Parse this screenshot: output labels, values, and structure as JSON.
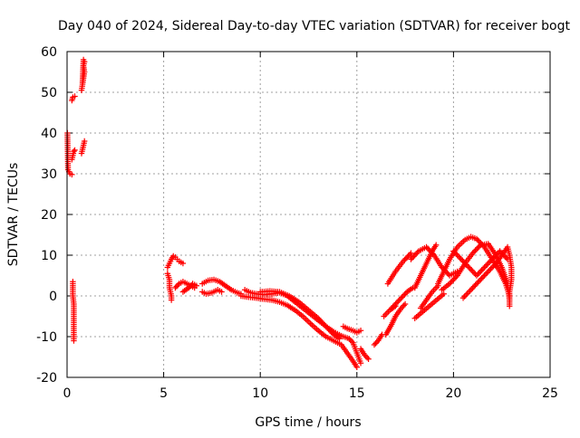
{
  "chart_data": {
    "type": "scatter",
    "title": "Day 040 of 2024, Sidereal Day-to-day VTEC variation (SDTVAR) for receiver bogt",
    "xlabel": "GPS time / hours",
    "ylabel": "SDTVAR / TECUs",
    "xlim": [
      0,
      25
    ],
    "ylim": [
      -20,
      60
    ],
    "xticks": [
      0,
      5,
      10,
      15,
      20,
      25
    ],
    "yticks": [
      -20,
      -10,
      0,
      10,
      20,
      30,
      40,
      50,
      60
    ],
    "grid": true,
    "marker": "+",
    "color": "#ff0000",
    "series": [
      {
        "name": "SDTVAR",
        "tracks": [
          [
            [
              0.02,
              40.0
            ],
            [
              0.05,
              31.0
            ],
            [
              0.15,
              30.0
            ],
            [
              0.25,
              29.8
            ]
          ],
          [
            [
              0.25,
              33.5
            ],
            [
              0.3,
              34.5
            ],
            [
              0.35,
              35.5
            ],
            [
              0.4,
              35.8
            ]
          ],
          [
            [
              0.25,
              48.0
            ],
            [
              0.3,
              48.8
            ],
            [
              0.4,
              49.0
            ]
          ],
          [
            [
              0.75,
              35.0
            ],
            [
              0.8,
              36.0
            ],
            [
              0.85,
              37.0
            ],
            [
              0.9,
              38.0
            ]
          ],
          [
            [
              0.75,
              50.5
            ],
            [
              0.8,
              52.0
            ],
            [
              0.85,
              53.5
            ],
            [
              0.9,
              55.0
            ],
            [
              0.85,
              56.5
            ],
            [
              0.9,
              57.5
            ],
            [
              0.85,
              58.0
            ],
            [
              0.8,
              52.5
            ]
          ],
          [
            [
              0.3,
              3.5
            ],
            [
              0.3,
              2.0
            ],
            [
              0.3,
              0.0
            ],
            [
              0.35,
              -2.0
            ],
            [
              0.35,
              -4.0
            ],
            [
              0.35,
              -6.0
            ],
            [
              0.35,
              -8.0
            ],
            [
              0.35,
              -10.0
            ],
            [
              0.35,
              -11.0
            ]
          ],
          [
            [
              5.2,
              7.0
            ],
            [
              5.3,
              8.0
            ],
            [
              5.4,
              9.0
            ],
            [
              5.5,
              9.8
            ],
            [
              5.6,
              9.5
            ],
            [
              5.7,
              9.0
            ],
            [
              5.8,
              8.5
            ],
            [
              6.0,
              8.0
            ]
          ],
          [
            [
              5.2,
              5.5
            ],
            [
              5.3,
              4.0
            ],
            [
              5.3,
              2.0
            ],
            [
              5.4,
              0.0
            ],
            [
              5.4,
              -1.0
            ]
          ],
          [
            [
              5.6,
              2.0
            ],
            [
              5.8,
              3.0
            ],
            [
              6.0,
              3.5
            ],
            [
              6.2,
              3.0
            ],
            [
              6.4,
              2.5
            ],
            [
              6.6,
              2.0
            ]
          ],
          [
            [
              6.0,
              1.0
            ],
            [
              6.3,
              2.0
            ],
            [
              6.5,
              3.0
            ],
            [
              6.7,
              2.5
            ]
          ],
          [
            [
              7.0,
              3.0
            ],
            [
              7.3,
              3.8
            ],
            [
              7.6,
              4.0
            ],
            [
              7.9,
              3.5
            ],
            [
              8.2,
              2.5
            ],
            [
              8.5,
              1.5
            ],
            [
              8.8,
              0.8
            ],
            [
              9.0,
              0.5
            ]
          ],
          [
            [
              7.0,
              1.0
            ],
            [
              7.2,
              0.5
            ],
            [
              7.5,
              0.8
            ],
            [
              7.8,
              1.5
            ],
            [
              8.0,
              1.0
            ]
          ],
          [
            [
              9.2,
              1.5
            ],
            [
              9.5,
              0.8
            ],
            [
              9.8,
              0.5
            ],
            [
              10.2,
              0.3
            ],
            [
              10.6,
              0.5
            ],
            [
              11.0,
              0.8
            ],
            [
              11.4,
              0.0
            ],
            [
              11.8,
              -1.5
            ],
            [
              12.2,
              -3.0
            ],
            [
              12.6,
              -4.5
            ],
            [
              13.0,
              -6.0
            ],
            [
              13.4,
              -7.5
            ],
            [
              13.8,
              -8.8
            ],
            [
              14.2,
              -9.8
            ],
            [
              14.6,
              -10.5
            ],
            [
              14.8,
              -11.5
            ],
            [
              15.0,
              -14.0
            ],
            [
              15.2,
              -16.5
            ]
          ],
          [
            [
              9.0,
              0.0
            ],
            [
              9.4,
              -0.3
            ],
            [
              9.8,
              -0.5
            ],
            [
              10.2,
              -0.8
            ],
            [
              10.6,
              -1.0
            ],
            [
              11.0,
              -1.5
            ],
            [
              11.4,
              -2.3
            ],
            [
              11.8,
              -3.5
            ],
            [
              12.2,
              -5.0
            ],
            [
              12.6,
              -6.8
            ],
            [
              13.0,
              -8.5
            ],
            [
              13.4,
              -10.0
            ],
            [
              13.8,
              -11.0
            ],
            [
              14.2,
              -12.0
            ],
            [
              14.5,
              -14.0
            ],
            [
              14.8,
              -16.0
            ],
            [
              15.0,
              -17.5
            ]
          ],
          [
            [
              10.0,
              1.0
            ],
            [
              10.5,
              1.2
            ],
            [
              11.0,
              1.0
            ],
            [
              11.5,
              0.0
            ],
            [
              12.0,
              -1.5
            ],
            [
              12.5,
              -3.5
            ],
            [
              13.0,
              -5.5
            ],
            [
              13.4,
              -7.5
            ],
            [
              13.8,
              -9.5
            ],
            [
              14.1,
              -10.5
            ]
          ],
          [
            [
              14.3,
              -7.5
            ],
            [
              14.5,
              -8.0
            ],
            [
              14.8,
              -8.5
            ],
            [
              15.0,
              -9.0
            ],
            [
              15.2,
              -8.5
            ]
          ],
          [
            [
              15.2,
              -13.0
            ],
            [
              15.4,
              -14.5
            ],
            [
              15.6,
              -15.5
            ]
          ],
          [
            [
              15.9,
              -12.0
            ],
            [
              16.1,
              -11.0
            ],
            [
              16.3,
              -9.5
            ]
          ],
          [
            [
              16.5,
              -9.5
            ],
            [
              16.8,
              -7.0
            ],
            [
              17.0,
              -5.0
            ],
            [
              17.3,
              -3.0
            ],
            [
              17.5,
              -2.0
            ]
          ],
          [
            [
              16.6,
              3.0
            ],
            [
              17.0,
              6.0
            ],
            [
              17.4,
              8.5
            ],
            [
              17.8,
              10.5
            ]
          ],
          [
            [
              16.8,
              -3.0
            ],
            [
              17.2,
              -1.0
            ],
            [
              17.6,
              1.0
            ],
            [
              17.9,
              2.0
            ]
          ],
          [
            [
              18.0,
              2.0
            ],
            [
              18.3,
              5.0
            ],
            [
              18.6,
              8.0
            ],
            [
              18.9,
              11.0
            ],
            [
              19.1,
              12.5
            ]
          ],
          [
            [
              17.8,
              9.0
            ],
            [
              18.2,
              11.0
            ],
            [
              18.6,
              12.0
            ],
            [
              19.0,
              10.0
            ],
            [
              19.4,
              7.0
            ],
            [
              19.8,
              5.0
            ],
            [
              20.2,
              6.0
            ]
          ],
          [
            [
              18.3,
              -3.0
            ],
            [
              18.6,
              -1.0
            ],
            [
              18.9,
              1.0
            ],
            [
              19.2,
              2.5
            ]
          ],
          [
            [
              19.2,
              3.0
            ],
            [
              19.5,
              6.0
            ],
            [
              19.8,
              9.0
            ],
            [
              20.2,
              12.0
            ],
            [
              20.6,
              13.8
            ],
            [
              20.9,
              14.5
            ],
            [
              21.2,
              14.0
            ],
            [
              21.6,
              12.0
            ],
            [
              22.0,
              9.0
            ],
            [
              22.4,
              6.0
            ],
            [
              22.7,
              3.0
            ],
            [
              22.9,
              0.0
            ]
          ],
          [
            [
              19.4,
              1.5
            ],
            [
              19.8,
              3.0
            ],
            [
              20.2,
              5.0
            ],
            [
              20.6,
              8.0
            ],
            [
              21.0,
              10.5
            ],
            [
              21.4,
              12.5
            ],
            [
              21.8,
              12.8
            ],
            [
              22.2,
              10.0
            ],
            [
              22.5,
              7.0
            ],
            [
              22.8,
              3.0
            ],
            [
              22.9,
              -1.0
            ]
          ],
          [
            [
              20.0,
              11.0
            ],
            [
              20.4,
              9.0
            ],
            [
              20.8,
              7.0
            ],
            [
              21.2,
              5.0
            ],
            [
              21.6,
              7.0
            ],
            [
              22.0,
              9.0
            ],
            [
              22.4,
              11.0
            ],
            [
              22.8,
              9.0
            ]
          ],
          [
            [
              20.5,
              -0.5
            ],
            [
              21.0,
              2.0
            ],
            [
              21.4,
              4.0
            ],
            [
              21.8,
              6.0
            ],
            [
              22.2,
              8.0
            ],
            [
              22.5,
              10.0
            ],
            [
              22.8,
              12.0
            ],
            [
              22.9,
              10.0
            ],
            [
              23.0,
              7.0
            ],
            [
              23.0,
              4.0
            ],
            [
              22.9,
              1.0
            ],
            [
              22.9,
              -2.5
            ]
          ],
          [
            [
              18.0,
              -5.5
            ],
            [
              18.5,
              -3.5
            ],
            [
              19.0,
              -1.5
            ],
            [
              19.5,
              0.5
            ]
          ],
          [
            [
              16.4,
              -5.0
            ],
            [
              16.7,
              -3.5
            ],
            [
              17.0,
              -2.5
            ]
          ]
        ]
      }
    ]
  }
}
